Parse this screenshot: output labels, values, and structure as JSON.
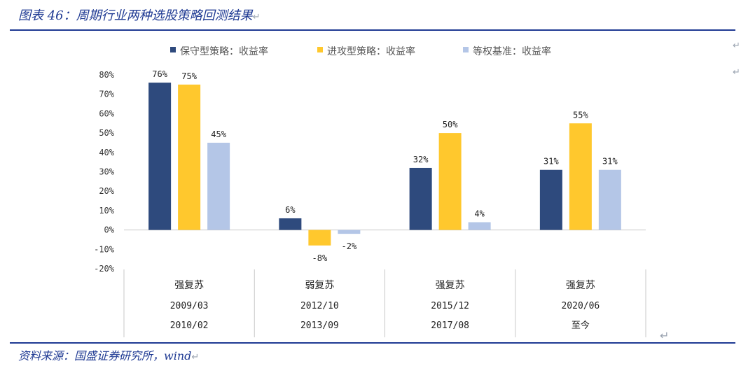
{
  "figure": {
    "title": "图表 46：周期行业两种选股策略回测结果",
    "source": "资料来源：国盛证券研究所，wind",
    "return_mark": "↵"
  },
  "chart_data": {
    "type": "bar",
    "ylim": [
      -0.2,
      0.8
    ],
    "yticks": [
      -0.2,
      -0.1,
      0.0,
      0.1,
      0.2,
      0.3,
      0.4,
      0.5,
      0.6,
      0.7,
      0.8
    ],
    "ytick_labels": [
      "-20%",
      "-10%",
      "0%",
      "10%",
      "20%",
      "30%",
      "40%",
      "50%",
      "60%",
      "70%",
      "80%"
    ],
    "legend_position": "top",
    "categories": [
      {
        "regime": "强复苏",
        "start": "2009/03",
        "end": "2010/02"
      },
      {
        "regime": "弱复苏",
        "start": "2012/10",
        "end": "2013/09"
      },
      {
        "regime": "强复苏",
        "start": "2015/12",
        "end": "2017/08"
      },
      {
        "regime": "强复苏",
        "start": "2020/06",
        "end": "至今"
      }
    ],
    "series": [
      {
        "name": "保守型策略：收益率",
        "color": "#2e4a7d",
        "values": [
          0.76,
          0.06,
          0.32,
          0.31
        ],
        "labels": [
          "76%",
          "6%",
          "32%",
          "31%"
        ]
      },
      {
        "name": "进攻型策略：收益率",
        "color": "#ffc82d",
        "values": [
          0.75,
          -0.08,
          0.5,
          0.55
        ],
        "labels": [
          "75%",
          "-8%",
          "50%",
          "55%"
        ]
      },
      {
        "name": "等权基准：收益率",
        "color": "#b4c6e7",
        "values": [
          0.45,
          -0.02,
          0.04,
          0.31
        ],
        "labels": [
          "45%",
          "-2%",
          "4%",
          "31%"
        ]
      }
    ]
  }
}
